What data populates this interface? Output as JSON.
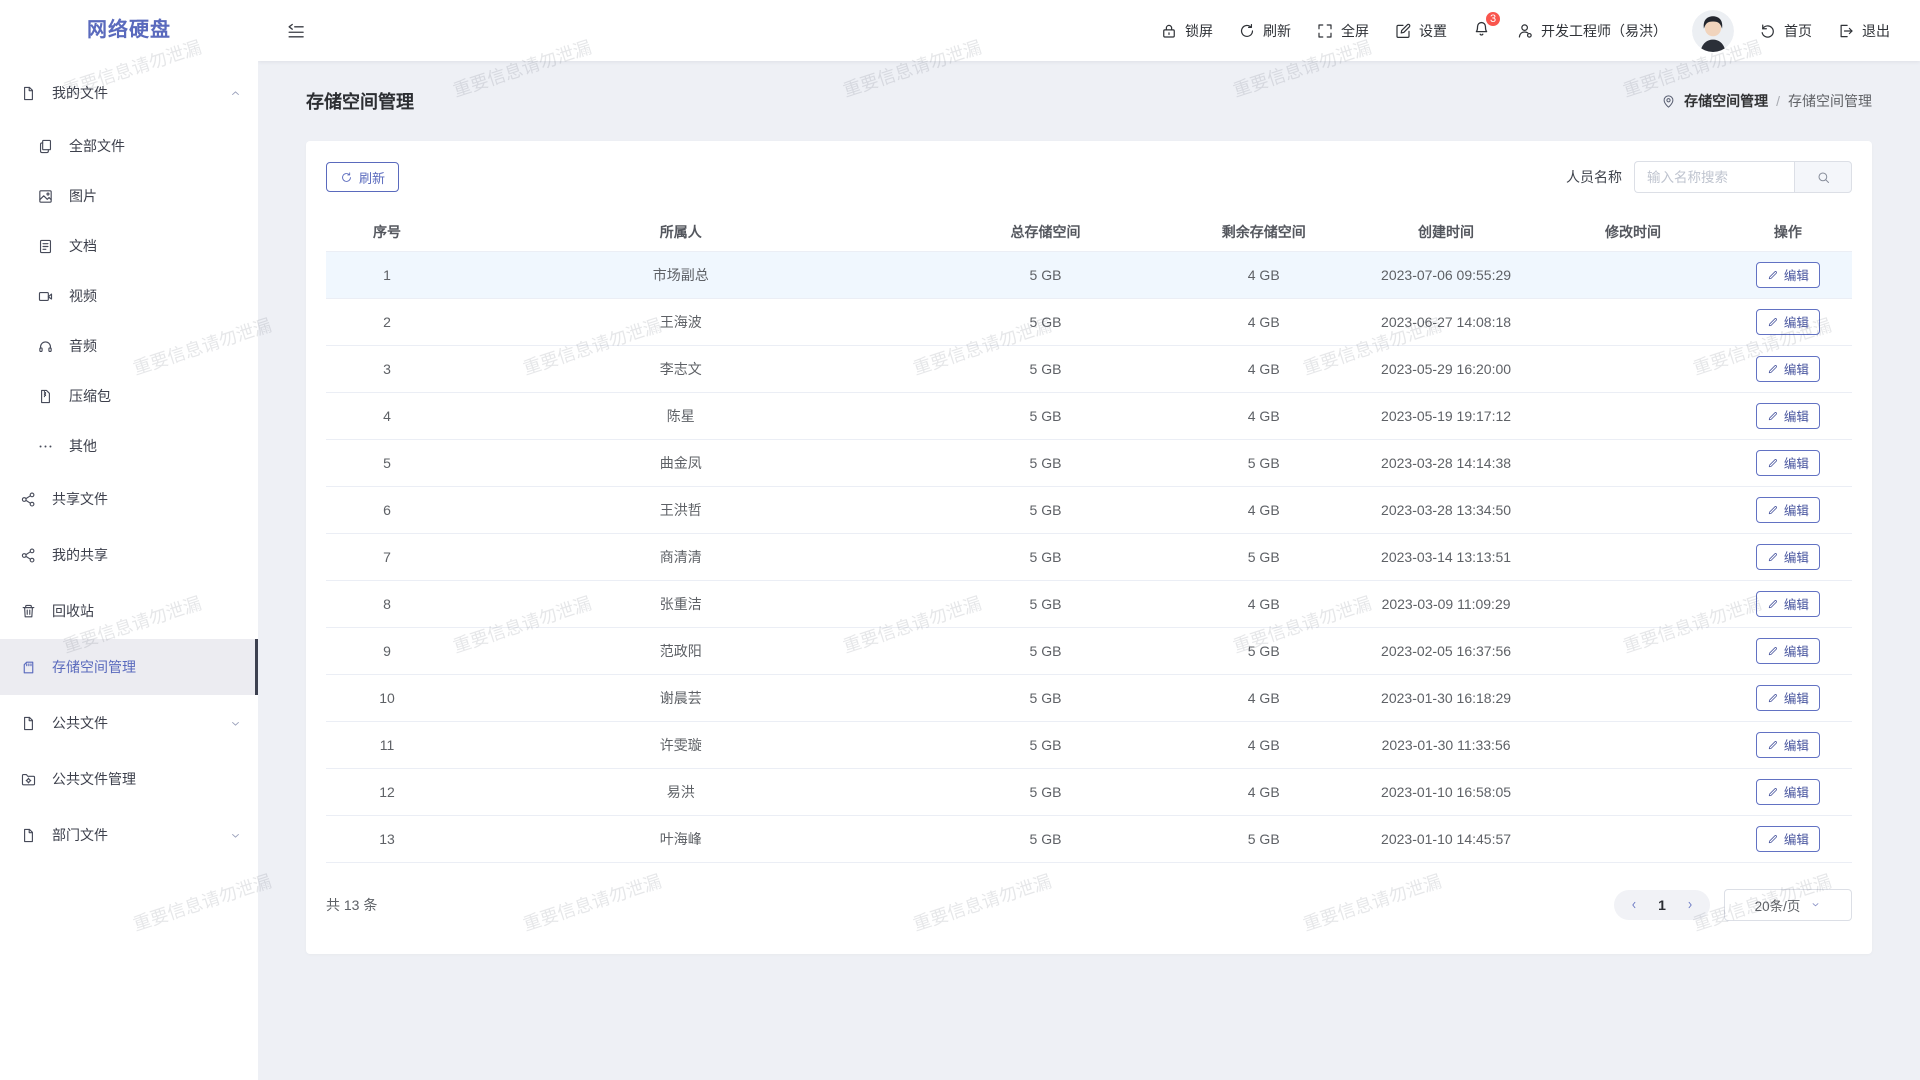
{
  "app": {
    "logo": "网络硬盘"
  },
  "topbar": {
    "lock_label": "锁屏",
    "refresh_label": "刷新",
    "fullscreen_label": "全屏",
    "settings_label": "设置",
    "notification_count": "3",
    "user_label": "开发工程师（易洪）",
    "home_label": "首页",
    "logout_label": "退出"
  },
  "sidebar": {
    "items": [
      {
        "id": "my-files",
        "icon": "document-icon",
        "label": "我的文件",
        "level": 0,
        "chevron": "up",
        "active": false
      },
      {
        "id": "all-files",
        "icon": "files-icon",
        "label": "全部文件",
        "level": 1
      },
      {
        "id": "images",
        "icon": "image-icon",
        "label": "图片",
        "level": 1
      },
      {
        "id": "docs",
        "icon": "doc-text-icon",
        "label": "文档",
        "level": 1
      },
      {
        "id": "videos",
        "icon": "video-icon",
        "label": "视频",
        "level": 1
      },
      {
        "id": "audio",
        "icon": "audio-icon",
        "label": "音频",
        "level": 1
      },
      {
        "id": "archives",
        "icon": "zip-icon",
        "label": "压缩包",
        "level": 1
      },
      {
        "id": "others",
        "icon": "ellipsis-icon",
        "label": "其他",
        "level": 1
      },
      {
        "id": "shared-files",
        "icon": "share-icon",
        "label": "共享文件",
        "level": 0
      },
      {
        "id": "my-shares",
        "icon": "share-icon",
        "label": "我的共享",
        "level": 0
      },
      {
        "id": "recycle-bin",
        "icon": "trash-icon",
        "label": "回收站",
        "level": 0
      },
      {
        "id": "storage-management",
        "icon": "storage-card-icon",
        "label": "存储空间管理",
        "level": 0,
        "active": true
      },
      {
        "id": "public-files",
        "icon": "document-icon",
        "label": "公共文件",
        "level": 0,
        "chevron": "down"
      },
      {
        "id": "public-files-management",
        "icon": "folder-manage-icon",
        "label": "公共文件管理",
        "level": 0
      },
      {
        "id": "department-files",
        "icon": "document-icon",
        "label": "部门文件",
        "level": 0,
        "chevron": "down"
      }
    ]
  },
  "page": {
    "title": "存储空间管理",
    "breadcrumb_root": "存储空间管理",
    "breadcrumb_separator": "/",
    "breadcrumb_current": "存储空间管理"
  },
  "toolbar": {
    "refresh_label": "刷新",
    "search_label": "人员名称",
    "search_placeholder": "输入名称搜索"
  },
  "table": {
    "columns": [
      "序号",
      "所属人",
      "总存储空间",
      "剩余存储空间",
      "创建时间",
      "修改时间",
      "操作"
    ],
    "edit_label": "编辑",
    "rows": [
      {
        "no": "1",
        "owner": "市场副总",
        "total": "5 GB",
        "remaining": "4 GB",
        "created": "2023-07-06 09:55:29",
        "modified": ""
      },
      {
        "no": "2",
        "owner": "王海波",
        "total": "5 GB",
        "remaining": "4 GB",
        "created": "2023-06-27 14:08:18",
        "modified": ""
      },
      {
        "no": "3",
        "owner": "李志文",
        "total": "5 GB",
        "remaining": "4 GB",
        "created": "2023-05-29 16:20:00",
        "modified": ""
      },
      {
        "no": "4",
        "owner": "陈星",
        "total": "5 GB",
        "remaining": "4 GB",
        "created": "2023-05-19 19:17:12",
        "modified": ""
      },
      {
        "no": "5",
        "owner": "曲金凤",
        "total": "5 GB",
        "remaining": "5 GB",
        "created": "2023-03-28 14:14:38",
        "modified": ""
      },
      {
        "no": "6",
        "owner": "王洪哲",
        "total": "5 GB",
        "remaining": "4 GB",
        "created": "2023-03-28 13:34:50",
        "modified": ""
      },
      {
        "no": "7",
        "owner": "商清清",
        "total": "5 GB",
        "remaining": "5 GB",
        "created": "2023-03-14 13:13:51",
        "modified": ""
      },
      {
        "no": "8",
        "owner": "张重洁",
        "total": "5 GB",
        "remaining": "4 GB",
        "created": "2023-03-09 11:09:29",
        "modified": ""
      },
      {
        "no": "9",
        "owner": "范政阳",
        "total": "5 GB",
        "remaining": "5 GB",
        "created": "2023-02-05 16:37:56",
        "modified": ""
      },
      {
        "no": "10",
        "owner": "谢晨芸",
        "total": "5 GB",
        "remaining": "4 GB",
        "created": "2023-01-30 16:18:29",
        "modified": ""
      },
      {
        "no": "11",
        "owner": "许雯璇",
        "total": "5 GB",
        "remaining": "4 GB",
        "created": "2023-01-30 11:33:56",
        "modified": ""
      },
      {
        "no": "12",
        "owner": "易洪",
        "total": "5 GB",
        "remaining": "4 GB",
        "created": "2023-01-10 16:58:05",
        "modified": ""
      },
      {
        "no": "13",
        "owner": "叶海峰",
        "total": "5 GB",
        "remaining": "5 GB",
        "created": "2023-01-10 14:45:57",
        "modified": ""
      }
    ]
  },
  "pagination": {
    "total_label": "共 13 条",
    "current_page": "1",
    "page_size": "20条/页"
  },
  "watermark": {
    "text": "重要信息请勿泄漏"
  },
  "colors": {
    "accent": "#5a6abd",
    "badge": "#f9554d",
    "content_bg": "#eef0f5",
    "active_item_bg": "#ececf1",
    "row_highlight": "#f0f7fe"
  }
}
